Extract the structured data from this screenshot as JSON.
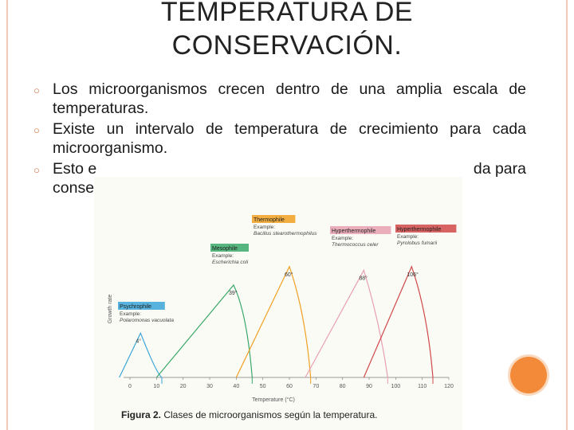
{
  "slide": {
    "title_line1": "TEMPERATURA DE",
    "title_line2": "CONSERVACIÓN.",
    "bullets": [
      "Los microorganismos crecen dentro de una amplia escala de temperaturas.",
      "Existe un intervalo de temperatura de crecimiento para cada microorganismo.",
      "Esto e",
      "consen"
    ],
    "bullet3_end": "da para",
    "caption_bold": "Figura 2.",
    "caption_text": " Clases de microorganismos según la temperatura.",
    "colors": {
      "title": "#222222",
      "accent_dot": "#f28a3a",
      "frame": "#f2c9b8"
    }
  },
  "chart_data": {
    "type": "line",
    "xlabel": "Temperature (°C)",
    "ylabel": "Growth rate",
    "xlim": [
      0,
      120
    ],
    "xticks": [
      0,
      10,
      20,
      30,
      40,
      50,
      60,
      70,
      80,
      90,
      100,
      110,
      120
    ],
    "grid": false,
    "series": [
      {
        "name": "Psychrophile",
        "example_label": "Example:",
        "example": "Polaromonas vacuolata",
        "optimum_label": "4°",
        "color": "#3aa6d8",
        "points": [
          [
            -4,
            0
          ],
          [
            4,
            0.24
          ],
          [
            10,
            0.02
          ],
          [
            12,
            0
          ]
        ]
      },
      {
        "name": "Mesophile",
        "example_label": "Example:",
        "example": "Escherichia coli",
        "optimum_label": "39°",
        "color": "#3aa86a",
        "points": [
          [
            10,
            0
          ],
          [
            39,
            0.5
          ],
          [
            44,
            0.35
          ],
          [
            46,
            0
          ]
        ]
      },
      {
        "name": "Thermophile",
        "example_label": "Example:",
        "example": "Bacillus stearothermophilus",
        "optimum_label": "60°",
        "color": "#f0a020",
        "points": [
          [
            40,
            0
          ],
          [
            60,
            0.6
          ],
          [
            66,
            0.35
          ],
          [
            68,
            0
          ]
        ]
      },
      {
        "name": "Hyperthermophile",
        "example_label": "Example:",
        "example": "Thermococcus celer",
        "optimum_label": "88°",
        "color": "#e8a0b0",
        "points": [
          [
            66,
            0
          ],
          [
            88,
            0.58
          ],
          [
            94,
            0.3
          ],
          [
            97,
            0
          ]
        ]
      },
      {
        "name": "Hyperthermophile",
        "example_label": "Example:",
        "example": "Pyrolobus fumarii",
        "optimum_label": "106°",
        "color": "#d04848",
        "points": [
          [
            88,
            0
          ],
          [
            106,
            0.6
          ],
          [
            112,
            0.35
          ],
          [
            114,
            0
          ]
        ]
      }
    ]
  }
}
